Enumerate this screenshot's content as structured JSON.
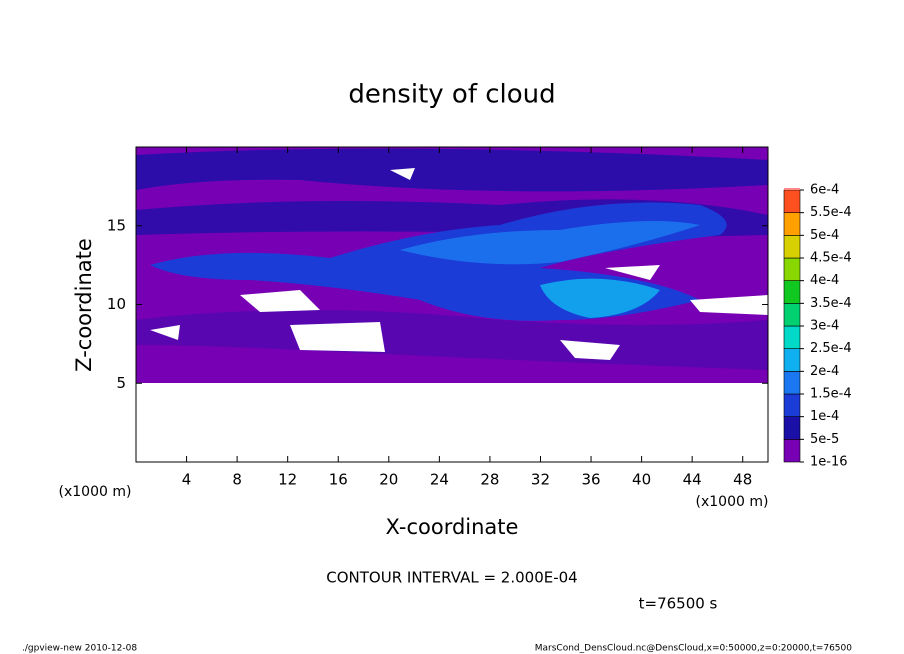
{
  "chart_data": {
    "type": "contour",
    "title": "density of cloud",
    "xlabel": "X-coordinate",
    "ylabel": "Z-coordinate",
    "xunit": "(x1000 m)",
    "yunit": "(x1000 m)",
    "xlim": [
      0,
      50
    ],
    "ylim": [
      0,
      20
    ],
    "xticks": [
      4,
      8,
      12,
      16,
      20,
      24,
      28,
      32,
      36,
      40,
      44,
      48
    ],
    "yticks": [
      5,
      10,
      15
    ],
    "colorbar": {
      "levels": [
        {
          "value": 1e-16,
          "label": "1e-16"
        },
        {
          "value": 5e-05,
          "label": "5e-5"
        },
        {
          "value": 0.0001,
          "label": "1e-4"
        },
        {
          "value": 0.00015,
          "label": "1.5e-4"
        },
        {
          "value": 0.0002,
          "label": "2e-4"
        },
        {
          "value": 0.00025,
          "label": "2.5e-4"
        },
        {
          "value": 0.0003,
          "label": "3e-4"
        },
        {
          "value": 0.00035,
          "label": "3.5e-4"
        },
        {
          "value": 0.0004,
          "label": "4e-4"
        },
        {
          "value": 0.00045,
          "label": "4.5e-4"
        },
        {
          "value": 0.0005,
          "label": "5e-4"
        },
        {
          "value": 0.00055,
          "label": "5.5e-4"
        },
        {
          "value": 0.0006,
          "label": "6e-4"
        }
      ],
      "colors": [
        "#7800b4",
        "#1a10a8",
        "#1c3cd8",
        "#1c78f0",
        "#10b0f0",
        "#00d8c8",
        "#00d070",
        "#10c820",
        "#88d800",
        "#d8d000",
        "#ffa000",
        "#ff5020",
        "#ff8888"
      ]
    },
    "annotation": "CONTOUR INTERVAL = 2.000E-04",
    "time_label": "t=76500 s",
    "footer_left": "./gpview-new  2010-12-08",
    "footer_right": "MarsCond_DensCloud.nc@DensCloud,x=0:50000,z=0:20000,t=76500"
  }
}
